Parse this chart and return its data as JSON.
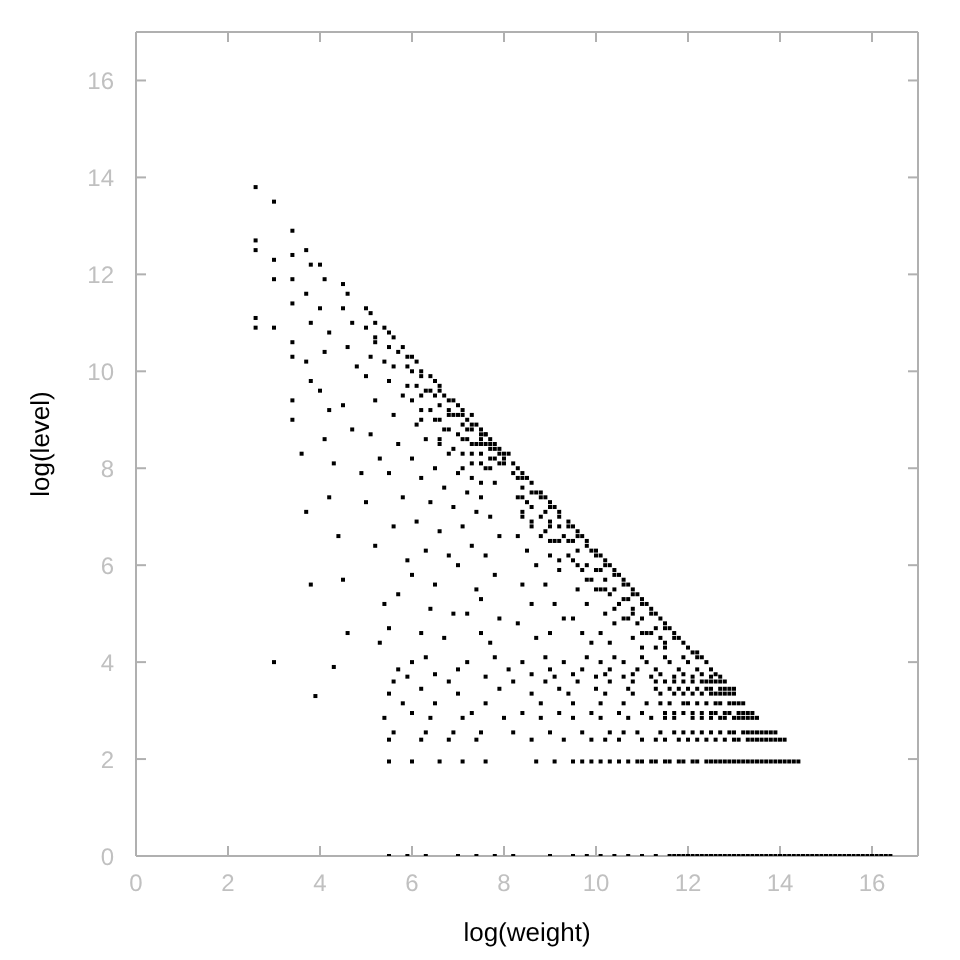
{
  "chart_data": {
    "type": "scatter",
    "xlabel": "log(weight)",
    "ylabel": "log(level)",
    "color": "#000000",
    "marker": "square",
    "xlim": [
      0,
      17
    ],
    "ylim": [
      0,
      17
    ],
    "xticks": [
      0,
      2,
      4,
      6,
      8,
      10,
      12,
      14,
      16
    ],
    "yticks": [
      0,
      2,
      4,
      6,
      8,
      10,
      12,
      14,
      16
    ],
    "x": [
      2.6,
      2.6,
      2.6,
      2.6,
      2.6,
      3.0,
      3.0,
      3.0,
      3.0,
      3.0,
      3.4,
      3.4,
      3.4,
      3.4,
      3.4,
      3.4,
      3.4,
      3.4,
      3.7,
      3.8,
      3.7,
      3.8,
      3.7,
      3.8,
      3.6,
      3.7,
      3.8,
      3.9,
      4.0,
      4.1,
      4.0,
      4.2,
      4.1,
      4.0,
      4.2,
      4.1,
      4.3,
      4.2,
      4.4,
      4.5,
      4.6,
      4.3,
      4.5,
      4.6,
      4.5,
      4.7,
      4.6,
      4.8,
      4.5,
      4.7,
      4.9,
      5.0,
      5.1,
      5.0,
      5.2,
      5.1,
      5.0,
      5.2,
      5.1,
      5.3,
      5.0,
      5.2,
      5.4,
      5.3,
      5.5,
      5.6,
      5.5,
      5.7,
      5.6,
      5.5,
      5.8,
      5.6,
      5.7,
      5.5,
      5.8,
      5.6,
      5.9,
      5.7,
      5.5,
      6.0,
      6.1,
      6.0,
      6.2,
      6.1,
      6.3,
      6.0,
      6.2,
      6.1,
      6.3,
      6.0,
      6.2,
      6.4,
      6.1,
      6.3,
      6.0,
      6.4,
      6.2,
      6.5,
      6.6,
      6.5,
      6.7,
      6.6,
      6.8,
      6.5,
      6.7,
      6.6,
      6.8,
      6.5,
      6.7,
      6.9,
      6.6,
      6.8,
      6.5,
      6.9,
      6.7,
      7.0,
      7.1,
      7.0,
      7.2,
      7.1,
      7.3,
      7.0,
      7.2,
      7.4,
      7.1,
      7.3,
      7.0,
      7.2,
      7.4,
      7.1,
      7.3,
      7.0,
      7.4,
      7.2,
      7.5,
      7.5,
      7.6,
      7.5,
      7.7,
      7.6,
      7.8,
      7.5,
      7.7,
      7.9,
      7.6,
      7.8,
      7.5,
      7.7,
      7.9,
      7.6,
      7.8,
      7.5,
      7.9,
      7.7,
      8.0,
      8.1,
      8.0,
      8.3,
      8.4,
      8.3,
      8.5,
      8.4,
      8.6,
      8.3,
      8.5,
      8.7,
      8.4,
      8.6,
      8.3,
      8.5,
      8.7,
      8.4,
      8.6,
      8.3,
      8.7,
      8.9,
      9.0,
      9.1,
      8.9,
      9.2,
      9.0,
      9.2,
      8.9,
      9.1,
      9.3,
      9.0,
      9.2,
      8.9,
      9.1,
      9.3,
      9.0,
      9.5,
      9.6,
      9.7,
      9.5,
      9.8,
      9.6,
      9.9,
      9.5,
      9.7,
      9.9,
      9.6,
      9.8,
      9.5,
      9.7,
      9.9,
      10.1,
      10.2,
      10.3,
      10.1,
      10.4,
      10.2,
      10.5,
      10.1,
      10.3,
      10.5,
      10.2,
      10.4,
      10.1,
      10.3,
      10.7,
      10.8,
      10.9,
      10.7,
      11.0,
      10.8,
      11.1,
      10.7,
      10.9,
      11.1,
      10.8,
      11.0,
      11.3,
      11.4,
      11.5,
      11.3,
      11.6,
      11.4,
      11.7,
      11.5,
      11.3,
      11.9,
      12.0,
      12.1,
      12.2,
      5.8,
      6.4,
      6.9,
      7.3,
      7.4,
      7.6,
      7.8,
      7.9,
      8.2,
      8.8,
      9.4,
      10.0,
      10.6,
      11.2,
      11.8,
      7.2,
      7.5,
      7.8,
      6.3,
      7.8,
      8.9,
      9.8,
      10.4,
      11.0,
      11.5,
      11.9,
      12.2,
      6.0,
      7.2,
      8.4,
      9.3,
      10.1,
      10.6,
      11.1,
      11.6,
      12.0,
      12.4,
      5.7,
      7.0,
      8.1,
      9.0,
      9.7,
      10.3,
      10.9,
      11.3,
      11.8,
      12.2,
      12.5,
      6.5,
      8.6,
      9.5,
      10.2,
      10.8,
      11.4,
      11.9,
      12.3,
      12.6,
      5.9,
      7.6,
      9.1,
      10.0,
      10.6,
      11.2,
      11.7,
      12.1,
      12.5,
      12.7,
      5.6,
      6.8,
      8.2,
      8.9,
      9.6,
      10.3,
      10.8,
      11.3,
      11.7,
      12.1,
      12.4,
      12.6,
      12.8,
      6.2,
      7.9,
      9.2,
      10.0,
      10.7,
      11.3,
      11.8,
      12.2,
      12.5,
      12.8,
      13.0,
      5.5,
      7.0,
      8.6,
      9.4,
      10.2,
      10.8,
      11.4,
      11.9,
      12.3,
      12.6,
      12.8,
      13.0,
      5.8,
      6.5,
      7.6,
      8.8,
      9.5,
      10.1,
      10.6,
      11.1,
      11.6,
      12.0,
      12.4,
      12.7,
      13.0,
      13.2,
      6.0,
      7.3,
      8.4,
      9.2,
      9.9,
      10.5,
      11.0,
      11.5,
      11.9,
      12.3,
      12.6,
      12.9,
      13.2,
      13.4,
      5.4,
      6.4,
      7.1,
      8.0,
      8.8,
      9.5,
      10.1,
      10.7,
      11.2,
      11.7,
      12.1,
      12.5,
      12.8,
      13.1,
      13.3,
      13.5,
      5.6,
      6.3,
      6.9,
      7.5,
      8.2,
      9.0,
      9.7,
      10.3,
      10.9,
      11.4,
      11.9,
      12.3,
      12.7,
      13.0,
      13.3,
      13.5,
      13.7,
      13.9,
      5.5,
      6.2,
      6.8,
      7.4,
      8.6,
      9.3,
      9.9,
      10.5,
      11.0,
      11.5,
      12.0,
      12.4,
      12.8,
      13.1,
      13.4,
      13.6,
      13.8,
      14.0,
      14.1,
      5.5,
      6.0,
      6.6,
      7.1,
      7.6,
      8.7,
      9.1,
      9.5,
      9.9,
      10.3,
      10.7,
      11.0,
      11.3,
      11.6,
      11.9,
      12.2,
      12.5,
      12.7,
      12.9,
      13.1,
      13.3,
      13.5,
      13.7,
      13.9,
      14.1,
      14.3,
      14.4,
      5.5,
      5.9,
      6.3,
      7.0,
      7.4,
      7.8,
      8.2,
      9.0,
      9.5,
      9.8,
      10.1,
      10.4,
      10.7,
      11.0,
      11.3,
      11.6,
      11.8,
      12.0,
      12.2,
      12.4,
      12.6,
      12.8,
      13.0,
      13.2,
      13.4,
      13.6,
      13.8,
      14.0,
      14.2,
      14.4,
      14.6,
      14.8,
      15.0,
      15.2,
      15.4,
      15.6,
      15.8,
      16.0,
      16.2,
      16.4,
      5.2,
      5.2,
      5.4,
      5.4,
      5.9,
      5.9,
      5.9,
      6.2,
      6.2,
      6.2,
      6.4,
      6.4,
      6.6,
      6.6,
      6.6,
      6.8,
      6.8,
      6.8,
      6.9,
      6.9,
      7.1,
      7.1,
      7.1,
      7.3,
      7.3,
      7.3,
      7.3,
      7.5,
      7.5,
      7.5,
      7.7,
      7.7,
      7.7,
      7.9,
      8.0,
      8.2,
      8.4,
      8.4,
      8.4,
      8.6,
      8.6,
      8.6,
      8.8,
      8.8,
      8.8,
      9.0,
      9.0,
      9.0,
      9.2,
      9.2,
      9.2,
      9.4,
      9.4,
      9.4,
      9.6,
      9.6,
      9.8,
      9.8,
      9.8,
      10.0,
      10.0,
      10.0,
      10.2,
      10.2,
      10.4,
      10.4,
      10.4,
      10.6,
      10.6,
      10.6,
      10.8,
      10.8,
      11.0,
      11.0,
      11.0,
      11.2,
      11.2,
      11.5,
      11.5,
      11.7,
      12.3,
      11.7,
      11.9,
      12.1,
      12.3,
      12.5,
      12.7,
      12.9,
      13.1,
      13.3,
      13.5,
      13.7,
      13.9,
      14.1,
      14.3,
      14.5,
      14.7,
      14.9,
      15.1,
      15.3,
      15.5,
      15.7,
      15.9,
      16.1,
      16.3,
      9.7,
      10.1,
      10.5,
      10.9,
      11.2,
      11.5,
      11.8,
      12.1,
      12.4,
      12.6,
      12.8,
      13.0,
      13.2,
      13.4,
      13.6,
      13.8,
      14.0,
      14.2,
      10.2,
      11.3,
      11.8,
      12.2,
      12.6,
      13.0,
      13.3,
      13.5,
      13.7,
      13.9,
      10.6,
      11.7,
      12.1,
      12.5,
      12.9,
      13.2,
      13.4,
      13.6,
      13.8,
      11.5,
      12.3,
      12.7,
      13.0,
      13.2,
      13.4,
      11.7,
      12.1,
      12.5,
      12.8,
      13.1,
      13.3,
      11.4,
      11.9,
      12.2,
      12.6,
      12.9,
      13.1,
      11.7,
      12.1,
      12.5,
      12.7,
      12.9,
      11.6,
      12.0,
      12.4,
      12.7,
      12.9,
      11.5,
      11.9,
      12.3,
      12.5,
      12.7
    ],
    "values": [
      13.8,
      12.7,
      12.5,
      11.1,
      10.9,
      13.5,
      12.3,
      11.9,
      10.9,
      4.0,
      12.9,
      12.4,
      11.9,
      11.4,
      10.6,
      10.3,
      9.4,
      9.0,
      12.5,
      12.2,
      11.6,
      11.0,
      10.2,
      9.8,
      8.3,
      7.1,
      5.6,
      3.3,
      12.2,
      11.9,
      11.3,
      10.8,
      10.4,
      9.6,
      9.2,
      8.6,
      8.1,
      7.4,
      6.6,
      5.7,
      4.6,
      3.9,
      11.8,
      11.6,
      11.3,
      11.0,
      10.5,
      10.1,
      9.3,
      8.8,
      7.9,
      11.3,
      11.2,
      10.9,
      10.7,
      10.3,
      9.9,
      9.4,
      8.7,
      8.2,
      7.3,
      6.4,
      5.2,
      4.4,
      10.8,
      10.7,
      10.5,
      10.4,
      10.1,
      9.8,
      9.5,
      9.1,
      8.5,
      7.9,
      7.4,
      6.8,
      6.1,
      5.4,
      4.7,
      10.3,
      10.2,
      10.0,
      9.9,
      9.7,
      9.6,
      9.4,
      9.2,
      8.9,
      8.6,
      8.2,
      7.8,
      7.3,
      6.9,
      6.3,
      5.8,
      5.1,
      4.6,
      9.8,
      9.7,
      9.5,
      9.5,
      9.3,
      9.1,
      9.0,
      8.8,
      8.5,
      8.3,
      8.0,
      7.6,
      7.2,
      6.7,
      6.2,
      5.6,
      5.0,
      4.5,
      9.3,
      9.2,
      9.1,
      9.0,
      8.9,
      8.8,
      8.7,
      8.6,
      8.5,
      8.3,
      8.1,
      7.9,
      7.5,
      7.1,
      6.8,
      6.4,
      6.0,
      5.5,
      5.0,
      4.6,
      8.8,
      8.7,
      8.6,
      8.6,
      8.5,
      8.4,
      8.3,
      8.2,
      8.3,
      8.0,
      7.7,
      7.4,
      7.0,
      6.6,
      6.2,
      5.8,
      5.3,
      4.9,
      4.4,
      8.3,
      8.3,
      8.2,
      8.0,
      7.9,
      7.8,
      7.8,
      7.6,
      7.7,
      7.4,
      7.3,
      7.5,
      7.1,
      6.9,
      6.6,
      6.3,
      6.0,
      5.6,
      5.2,
      4.8,
      4.5,
      7.4,
      7.3,
      7.2,
      7.1,
      7.1,
      6.9,
      6.8,
      6.7,
      6.5,
      6.6,
      6.2,
      5.9,
      5.6,
      5.2,
      4.9,
      4.6,
      6.8,
      6.7,
      6.6,
      6.5,
      6.5,
      6.3,
      6.3,
      6.1,
      5.9,
      5.7,
      5.5,
      5.2,
      4.9,
      4.6,
      4.4,
      6.2,
      6.1,
      6.0,
      5.9,
      5.9,
      5.7,
      5.8,
      5.5,
      5.4,
      5.2,
      5.0,
      4.8,
      4.6,
      4.4,
      5.6,
      5.5,
      5.4,
      5.3,
      5.3,
      5.1,
      5.2,
      4.9,
      4.8,
      4.6,
      4.5,
      4.3,
      5.0,
      4.9,
      4.8,
      4.7,
      4.7,
      4.5,
      4.5,
      4.4,
      4.3,
      4.4,
      4.3,
      4.2,
      4.2,
      10.5,
      9.9,
      9.4,
      9.1,
      8.9,
      8.7,
      8.5,
      8.4,
      7.9,
      7.5,
      6.9,
      6.3,
      5.7,
      5.1,
      4.5,
      8.8,
      8.5,
      8.2,
      4.1,
      4.1,
      4.1,
      4.1,
      4.1,
      4.1,
      4.1,
      4.1,
      4.1,
      4.0,
      4.0,
      4.0,
      4.0,
      4.0,
      4.0,
      4.0,
      4.0,
      4.0,
      4.0,
      3.85,
      3.85,
      3.85,
      3.85,
      3.85,
      3.85,
      3.85,
      3.85,
      3.85,
      3.85,
      3.85,
      3.75,
      3.75,
      3.75,
      3.75,
      3.75,
      3.75,
      3.75,
      3.75,
      3.75,
      3.7,
      3.7,
      3.7,
      3.7,
      3.7,
      3.7,
      3.7,
      3.7,
      3.7,
      3.7,
      3.6,
      3.6,
      3.6,
      3.6,
      3.6,
      3.6,
      3.6,
      3.6,
      3.6,
      3.6,
      3.6,
      3.6,
      3.6,
      3.45,
      3.45,
      3.45,
      3.45,
      3.45,
      3.45,
      3.45,
      3.45,
      3.45,
      3.45,
      3.45,
      3.35,
      3.35,
      3.35,
      3.35,
      3.35,
      3.35,
      3.35,
      3.35,
      3.35,
      3.35,
      3.35,
      3.35,
      3.15,
      3.15,
      3.15,
      3.15,
      3.15,
      3.15,
      3.15,
      3.15,
      3.15,
      3.15,
      3.15,
      3.15,
      3.15,
      3.15,
      2.95,
      2.95,
      2.95,
      2.95,
      2.95,
      2.95,
      2.95,
      2.95,
      2.95,
      2.95,
      2.95,
      2.95,
      2.95,
      2.95,
      2.85,
      2.85,
      2.85,
      2.85,
      2.85,
      2.85,
      2.85,
      2.85,
      2.85,
      2.85,
      2.85,
      2.85,
      2.85,
      2.85,
      2.85,
      2.85,
      2.55,
      2.55,
      2.55,
      2.55,
      2.55,
      2.55,
      2.55,
      2.55,
      2.55,
      2.55,
      2.55,
      2.55,
      2.55,
      2.55,
      2.55,
      2.55,
      2.55,
      2.55,
      2.4,
      2.4,
      2.4,
      2.4,
      2.4,
      2.4,
      2.4,
      2.4,
      2.4,
      2.4,
      2.4,
      2.4,
      2.4,
      2.4,
      2.4,
      2.4,
      2.4,
      2.4,
      2.4,
      1.95,
      1.95,
      1.95,
      1.95,
      1.95,
      1.95,
      1.95,
      1.95,
      1.95,
      1.95,
      1.95,
      1.95,
      1.95,
      1.95,
      1.95,
      1.95,
      1.95,
      1.95,
      1.95,
      1.95,
      1.95,
      1.95,
      1.95,
      1.95,
      1.95,
      1.95,
      1.95,
      0,
      0,
      0,
      0,
      0,
      0,
      0,
      0,
      0,
      0,
      0,
      0,
      0,
      0,
      0,
      0,
      0,
      0,
      0,
      0,
      0,
      0,
      0,
      0,
      0,
      0,
      0,
      0,
      0,
      0,
      0,
      0,
      0,
      0,
      0,
      0,
      0,
      0,
      0,
      0,
      11.0,
      10.6,
      10.9,
      10.2,
      10.3,
      10.1,
      9.7,
      10.0,
      9.5,
      9.0,
      9.6,
      9.2,
      9.6,
      9.0,
      8.6,
      9.4,
      9.2,
      8.8,
      9.1,
      8.4,
      9.1,
      8.6,
      8.0,
      8.9,
      8.5,
      8.3,
      7.8,
      8.7,
      8.1,
      7.7,
      8.5,
      8.4,
      8.0,
      8.1,
      8.1,
      8.1,
      7.8,
      7.4,
      7.0,
      7.5,
      7.2,
      6.8,
      7.4,
      7.0,
      6.6,
      7.2,
      6.8,
      6.5,
      7.0,
      6.5,
      6.1,
      6.8,
      6.5,
      6.2,
      6.6,
      6.0,
      6.4,
      6.0,
      5.7,
      6.2,
      5.9,
      5.5,
      6.0,
      5.5,
      5.8,
      5.5,
      5.1,
      5.6,
      5.3,
      4.9,
      5.4,
      5.0,
      5.2,
      4.9,
      4.6,
      5.0,
      4.6,
      4.7,
      4.3,
      4.6,
      4.1,
      0,
      0,
      0,
      0,
      0,
      0,
      0,
      0,
      0,
      0,
      0,
      0,
      0,
      0,
      0,
      0,
      0,
      0,
      0,
      0,
      0,
      0,
      0,
      0,
      1.95,
      1.95,
      1.95,
      1.95,
      1.95,
      1.95,
      1.95,
      1.95,
      1.95,
      1.95,
      1.95,
      1.95,
      1.95,
      1.95,
      1.95,
      1.95,
      1.95,
      1.95,
      2.4,
      2.4,
      2.4,
      2.4,
      2.4,
      2.4,
      2.4,
      2.4,
      2.4,
      2.4,
      2.55,
      2.55,
      2.55,
      2.55,
      2.55,
      2.55,
      2.55,
      2.55,
      2.55,
      2.85,
      2.85,
      2.85,
      2.85,
      2.85,
      2.85,
      2.95,
      2.95,
      2.95,
      2.95,
      2.95,
      2.95,
      3.15,
      3.15,
      3.15,
      3.15,
      3.15,
      3.15,
      3.35,
      3.35,
      3.35,
      3.35,
      3.35,
      3.45,
      3.45,
      3.45,
      3.45,
      3.45,
      3.6,
      3.6,
      3.6,
      3.6,
      3.6
    ]
  }
}
